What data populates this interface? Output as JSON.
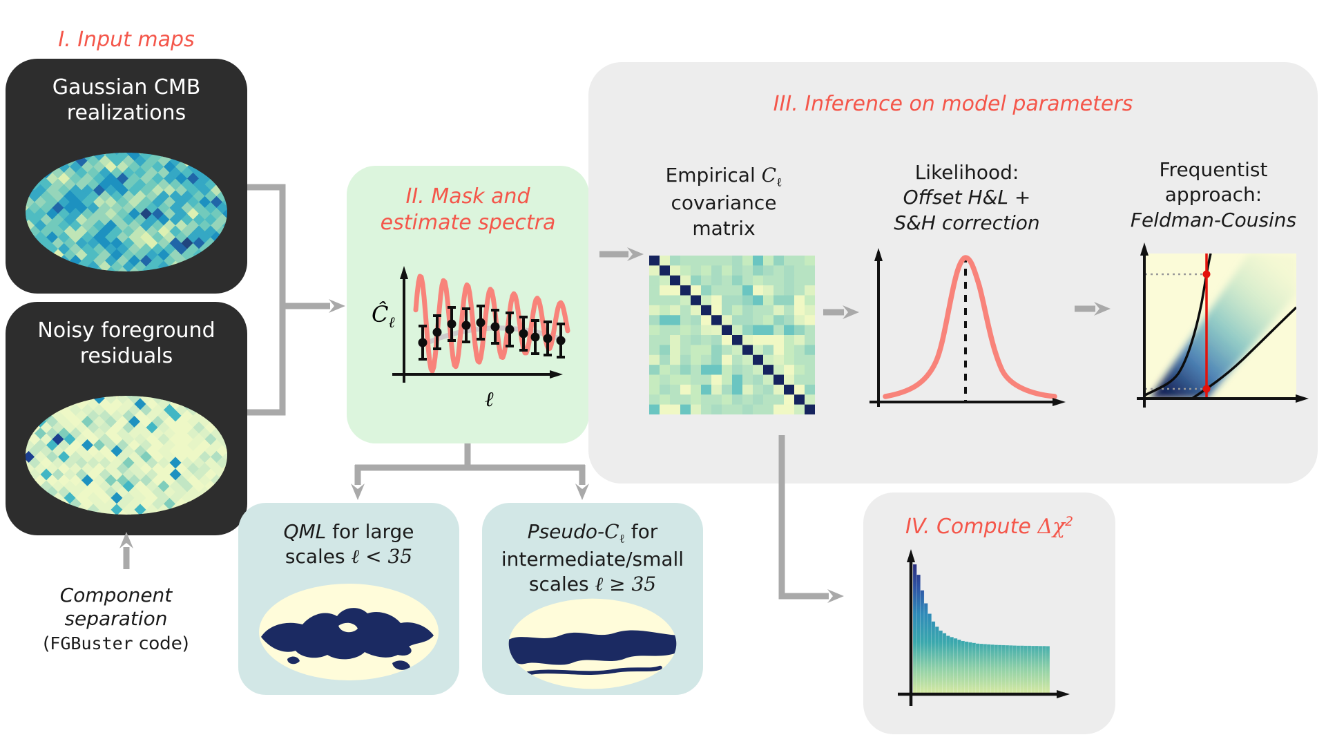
{
  "palette": {
    "coral": "#f4564a",
    "salmon_curve": "#f8837a",
    "arrow_gray": "#a9a9a9",
    "box_dark": "#2d2d2d",
    "box_green": "#dcf5dd",
    "box_blue": "#d2e7e6",
    "box_gray": "#ededed",
    "mask_navy": "#1b2a62",
    "mask_cream": "#fffcda",
    "axis_black": "#111111",
    "fc_red": "#e3120b",
    "gray_curve": "#cccccc"
  },
  "section1": {
    "heading": "I. Input maps",
    "box1_lines": [
      "Gaussian CMB",
      "realizations"
    ],
    "box2_lines": [
      "Noisy foreground",
      "residuals"
    ],
    "caption_line1": "Component",
    "caption_line2": "separation",
    "caption_line3_pre": "(",
    "caption_line3_code": "FGBuster",
    "caption_line3_post": " code)"
  },
  "section2": {
    "heading_line1": "II. Mask and",
    "heading_line2": "estimate spectra",
    "plot": {
      "ylabel_base": "Ĉ",
      "ylabel_sub": "ℓ",
      "xlabel": "ℓ",
      "points": [
        [
          102,
          134
        ],
        [
          123,
          119
        ],
        [
          144,
          107
        ],
        [
          165,
          109
        ],
        [
          186,
          105
        ],
        [
          207,
          111
        ],
        [
          228,
          115
        ],
        [
          248,
          121
        ],
        [
          265,
          126
        ],
        [
          283,
          128
        ],
        [
          302,
          131
        ]
      ],
      "err": 24
    }
  },
  "qml": {
    "line1_italic": "QML",
    "line1_rest": " for large",
    "line2_pre": "scales ",
    "line2_math": "ℓ < 35"
  },
  "pcl": {
    "line1_italic": "Pseudo-",
    "line1_math_base": "C",
    "line1_math_sub": "ℓ",
    "line1_rest": " for",
    "line2": "intermediate/small",
    "line3_pre": "scales ",
    "line3_math": "ℓ ≥ 35"
  },
  "section3": {
    "heading": "III. Inference on model parameters",
    "cov_panel": {
      "line1_pre": "Empirical ",
      "line1_math_base": "C",
      "line1_math_sub": "ℓ",
      "line2": "covariance",
      "line3": "matrix"
    },
    "like_panel": {
      "line1": "Likelihood:",
      "line2": "Offset H&L +",
      "line3": "S&H correction"
    },
    "fc_panel": {
      "line1": "Frequentist",
      "line2": "approach:",
      "line3": "Feldman-Cousins"
    }
  },
  "section4": {
    "heading_pre": "IV. Compute ",
    "heading_math": "Δχ",
    "heading_sup": "2",
    "hist": [
      1.0,
      0.92,
      0.8,
      0.7,
      0.62,
      0.56,
      0.52,
      0.49,
      0.47,
      0.45,
      0.44,
      0.43,
      0.42,
      0.41,
      0.405,
      0.4,
      0.395,
      0.39,
      0.388,
      0.386,
      0.384,
      0.382,
      0.38,
      0.379,
      0.378,
      0.377,
      0.376,
      0.375,
      0.374,
      0.374,
      0.373,
      0.373,
      0.372,
      0.372,
      0.371,
      0.371,
      0.37
    ]
  },
  "maps": {
    "cmb_palette": [
      "#20457f",
      "#2066a8",
      "#1d91c0",
      "#35a8c4",
      "#4fbcc2",
      "#72cabc",
      "#96d5ba",
      "#bfe5b6",
      "#ddf0b2",
      "#f0f8bc"
    ],
    "residual_palette": [
      "#eef8c6",
      "#e6f5c6",
      "#dcf1c6",
      "#d0ecc5",
      "#c2e6c4",
      "#b0dfc2",
      "#7fcdbb",
      "#41b6c4",
      "#1d91c0",
      "#1c3f8f"
    ],
    "matrix": {
      "diag": "#16245e",
      "near": [
        "#f2f9c4",
        "#e4f4c2",
        "#cfeec2"
      ],
      "cells": [
        [
          "#b7e3c2",
          30
        ],
        [
          "#a9dcc2",
          18
        ],
        [
          "#c6ebbf",
          18
        ],
        [
          "#93d4c0",
          10
        ],
        [
          "#def2c2",
          10
        ],
        [
          "#6ac5c1",
          6
        ],
        [
          "#f0f8c4",
          8
        ]
      ]
    }
  }
}
